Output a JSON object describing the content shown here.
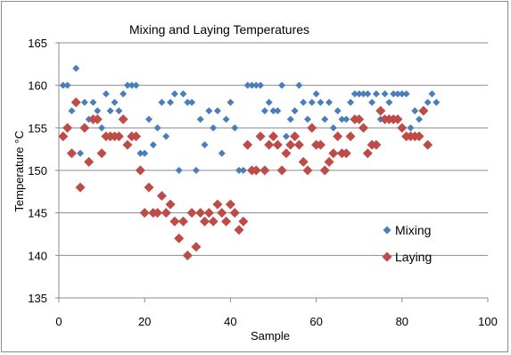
{
  "chart_data": {
    "type": "scatter",
    "title": "Mixing and Laying Temperatures",
    "xlabel": "Sample",
    "ylabel": "Temperature °C",
    "xlim": [
      0,
      100
    ],
    "ylim": [
      135,
      165
    ],
    "xticks": [
      "0",
      "20",
      "40",
      "60",
      "80",
      "100"
    ],
    "yticks": [
      "135",
      "140",
      "145",
      "150",
      "155",
      "160",
      "165"
    ],
    "grid": "horizontal",
    "legend_position": "right",
    "series": [
      {
        "name": "Mixing",
        "color": "#4a7ebb",
        "marker": "diamond",
        "values": [
          160,
          160,
          157,
          162,
          152,
          158,
          156,
          158,
          157,
          155,
          159,
          157,
          158,
          157,
          159,
          160,
          160,
          160,
          152,
          152,
          156,
          153,
          155,
          158,
          154,
          158,
          159,
          150,
          159,
          158,
          158,
          150,
          156,
          153,
          157,
          155,
          157,
          152,
          156,
          158,
          155,
          150,
          150,
          160,
          160,
          160,
          160,
          157,
          158,
          157,
          157,
          160,
          154,
          156,
          157,
          160,
          158,
          156,
          158,
          159,
          158,
          156,
          158,
          155,
          157,
          156,
          156,
          158,
          159,
          159,
          159,
          159,
          158,
          159,
          156,
          159,
          158,
          159,
          159,
          159,
          159,
          155,
          157,
          156,
          157,
          158,
          159,
          158
        ]
      },
      {
        "name": "Laying",
        "color": "#be4b48",
        "marker": "diamond",
        "values": [
          154,
          155,
          152,
          158,
          148,
          155,
          151,
          156,
          156,
          152,
          154,
          154,
          154,
          154,
          156,
          153,
          154,
          154,
          150,
          145,
          148,
          145,
          145,
          147,
          145,
          146,
          144,
          142,
          144,
          140,
          145,
          141,
          145,
          144,
          145,
          144,
          146,
          145,
          144,
          146,
          145,
          143,
          144,
          153,
          150,
          150,
          154,
          150,
          153,
          154,
          153,
          150,
          152,
          153,
          154,
          153,
          151,
          150,
          155,
          153,
          153,
          150,
          151,
          152,
          154,
          152,
          152,
          154,
          156,
          156,
          155,
          152,
          153,
          153,
          157,
          156,
          156,
          156,
          156,
          155,
          154,
          154,
          154,
          154,
          157,
          153
        ]
      }
    ]
  }
}
